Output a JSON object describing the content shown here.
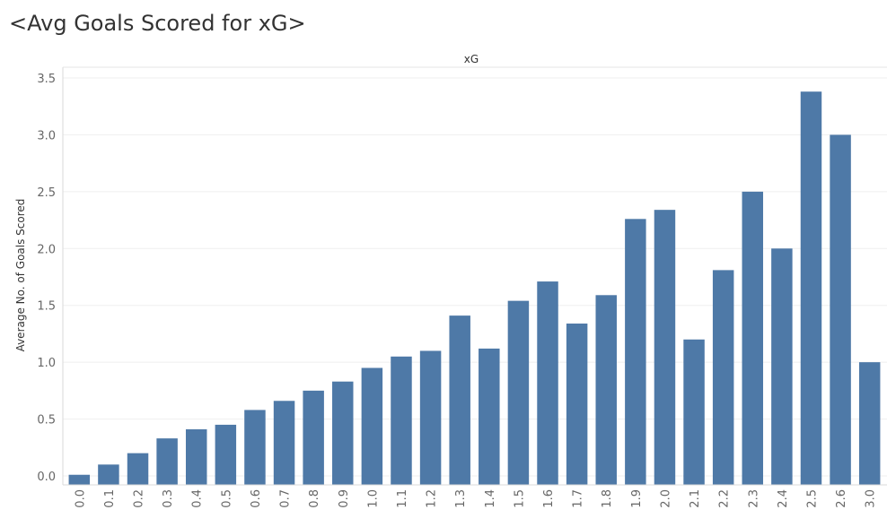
{
  "chart_data": {
    "type": "bar",
    "title": "<Avg Goals Scored for xG>",
    "column_header": "xG",
    "ylabel": "Average No. of Goals Scored",
    "ylim": [
      0,
      3.5
    ],
    "yticks": [
      "0.0",
      "0.5",
      "1.0",
      "1.5",
      "2.0",
      "2.5",
      "3.0",
      "3.5"
    ],
    "categories": [
      "0.0",
      "0.1",
      "0.2",
      "0.3",
      "0.4",
      "0.5",
      "0.6",
      "0.7",
      "0.8",
      "0.9",
      "1.0",
      "1.1",
      "1.2",
      "1.3",
      "1.4",
      "1.5",
      "1.6",
      "1.7",
      "1.8",
      "1.9",
      "2.0",
      "2.1",
      "2.2",
      "2.3",
      "2.4",
      "2.5",
      "2.6",
      "3.0"
    ],
    "values": [
      0.01,
      0.1,
      0.2,
      0.33,
      0.41,
      0.45,
      0.58,
      0.66,
      0.75,
      0.83,
      0.95,
      1.05,
      1.1,
      1.41,
      1.12,
      1.54,
      1.71,
      1.34,
      1.59,
      2.26,
      2.34,
      1.2,
      1.81,
      2.5,
      2.0,
      3.38,
      3.0,
      1.0
    ],
    "grid": true,
    "bar_color": "#4e79a7"
  }
}
